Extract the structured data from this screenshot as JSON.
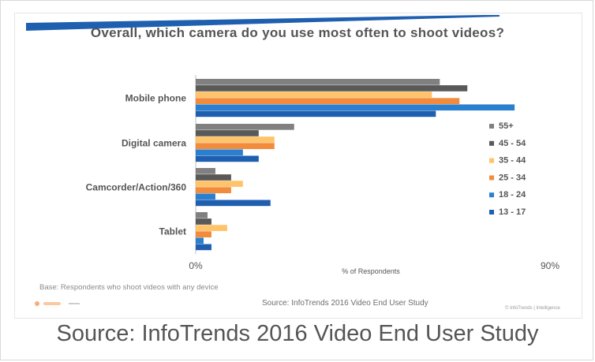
{
  "caption": "Source: InfoTrends 2016 Video End User Study",
  "slide": {
    "base_note": "Base: Respondents who shoot videos with any device",
    "inner_source": "Source: InfoTrends 2016 Video End User Study",
    "brand": "© InfoTrends | Intelligence"
  },
  "chart_data": {
    "type": "bar",
    "orientation": "horizontal",
    "title": "Overall, which camera do you use most often to shoot videos?",
    "xlabel": "% of Respondents",
    "ylabel": "",
    "xlim": [
      0,
      90
    ],
    "x_tick_labels": [
      "0%",
      "90%"
    ],
    "grid": false,
    "legend_position": "right",
    "categories": [
      "Mobile phone",
      "Digital camera",
      "Camcorder/Action/360",
      "Tablet"
    ],
    "series": [
      {
        "name": "55+",
        "color": "#808080",
        "values": [
          62,
          25,
          5,
          3
        ]
      },
      {
        "name": "45 - 54",
        "color": "#595959",
        "values": [
          69,
          16,
          9,
          4
        ]
      },
      {
        "name": "35 - 44",
        "color": "#ffc36b",
        "values": [
          60,
          20,
          12,
          8
        ]
      },
      {
        "name": "25 - 34",
        "color": "#f28c3c",
        "values": [
          67,
          20,
          9,
          4
        ]
      },
      {
        "name": "18 - 24",
        "color": "#2a7fcf",
        "values": [
          81,
          12,
          5,
          2
        ]
      },
      {
        "name": "13 - 17",
        "color": "#1f5fb0",
        "values": [
          61,
          16,
          19,
          4
        ]
      }
    ]
  }
}
